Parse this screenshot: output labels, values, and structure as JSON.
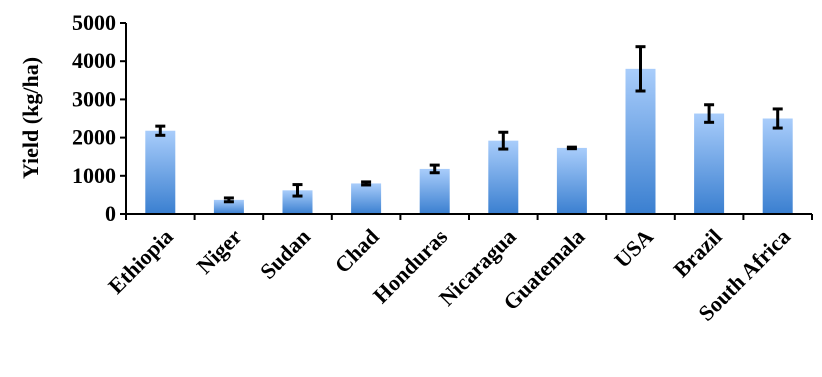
{
  "chart_data": {
    "type": "bar",
    "title": "",
    "xlabel": "",
    "ylabel": "Yield (kg/ha)",
    "ylim": [
      0,
      5000
    ],
    "yticks": [
      0,
      1000,
      2000,
      3000,
      4000,
      5000
    ],
    "grid": false,
    "categories": [
      "Ethiopia",
      "Niger",
      "Sudan",
      "Chad",
      "Honduras",
      "Nicaragua",
      "Guatemala",
      "USA",
      "Brazil",
      "South Africa"
    ],
    "values": [
      2180,
      370,
      620,
      800,
      1180,
      1920,
      1730,
      3800,
      2630,
      2500
    ],
    "errors": [
      120,
      50,
      150,
      40,
      100,
      220,
      20,
      580,
      230,
      250
    ],
    "colors": {
      "bar_top": "#a9cdfb",
      "bar_bottom": "#3a7fd0",
      "error_bar": "#000000",
      "axis": "#000000"
    }
  }
}
